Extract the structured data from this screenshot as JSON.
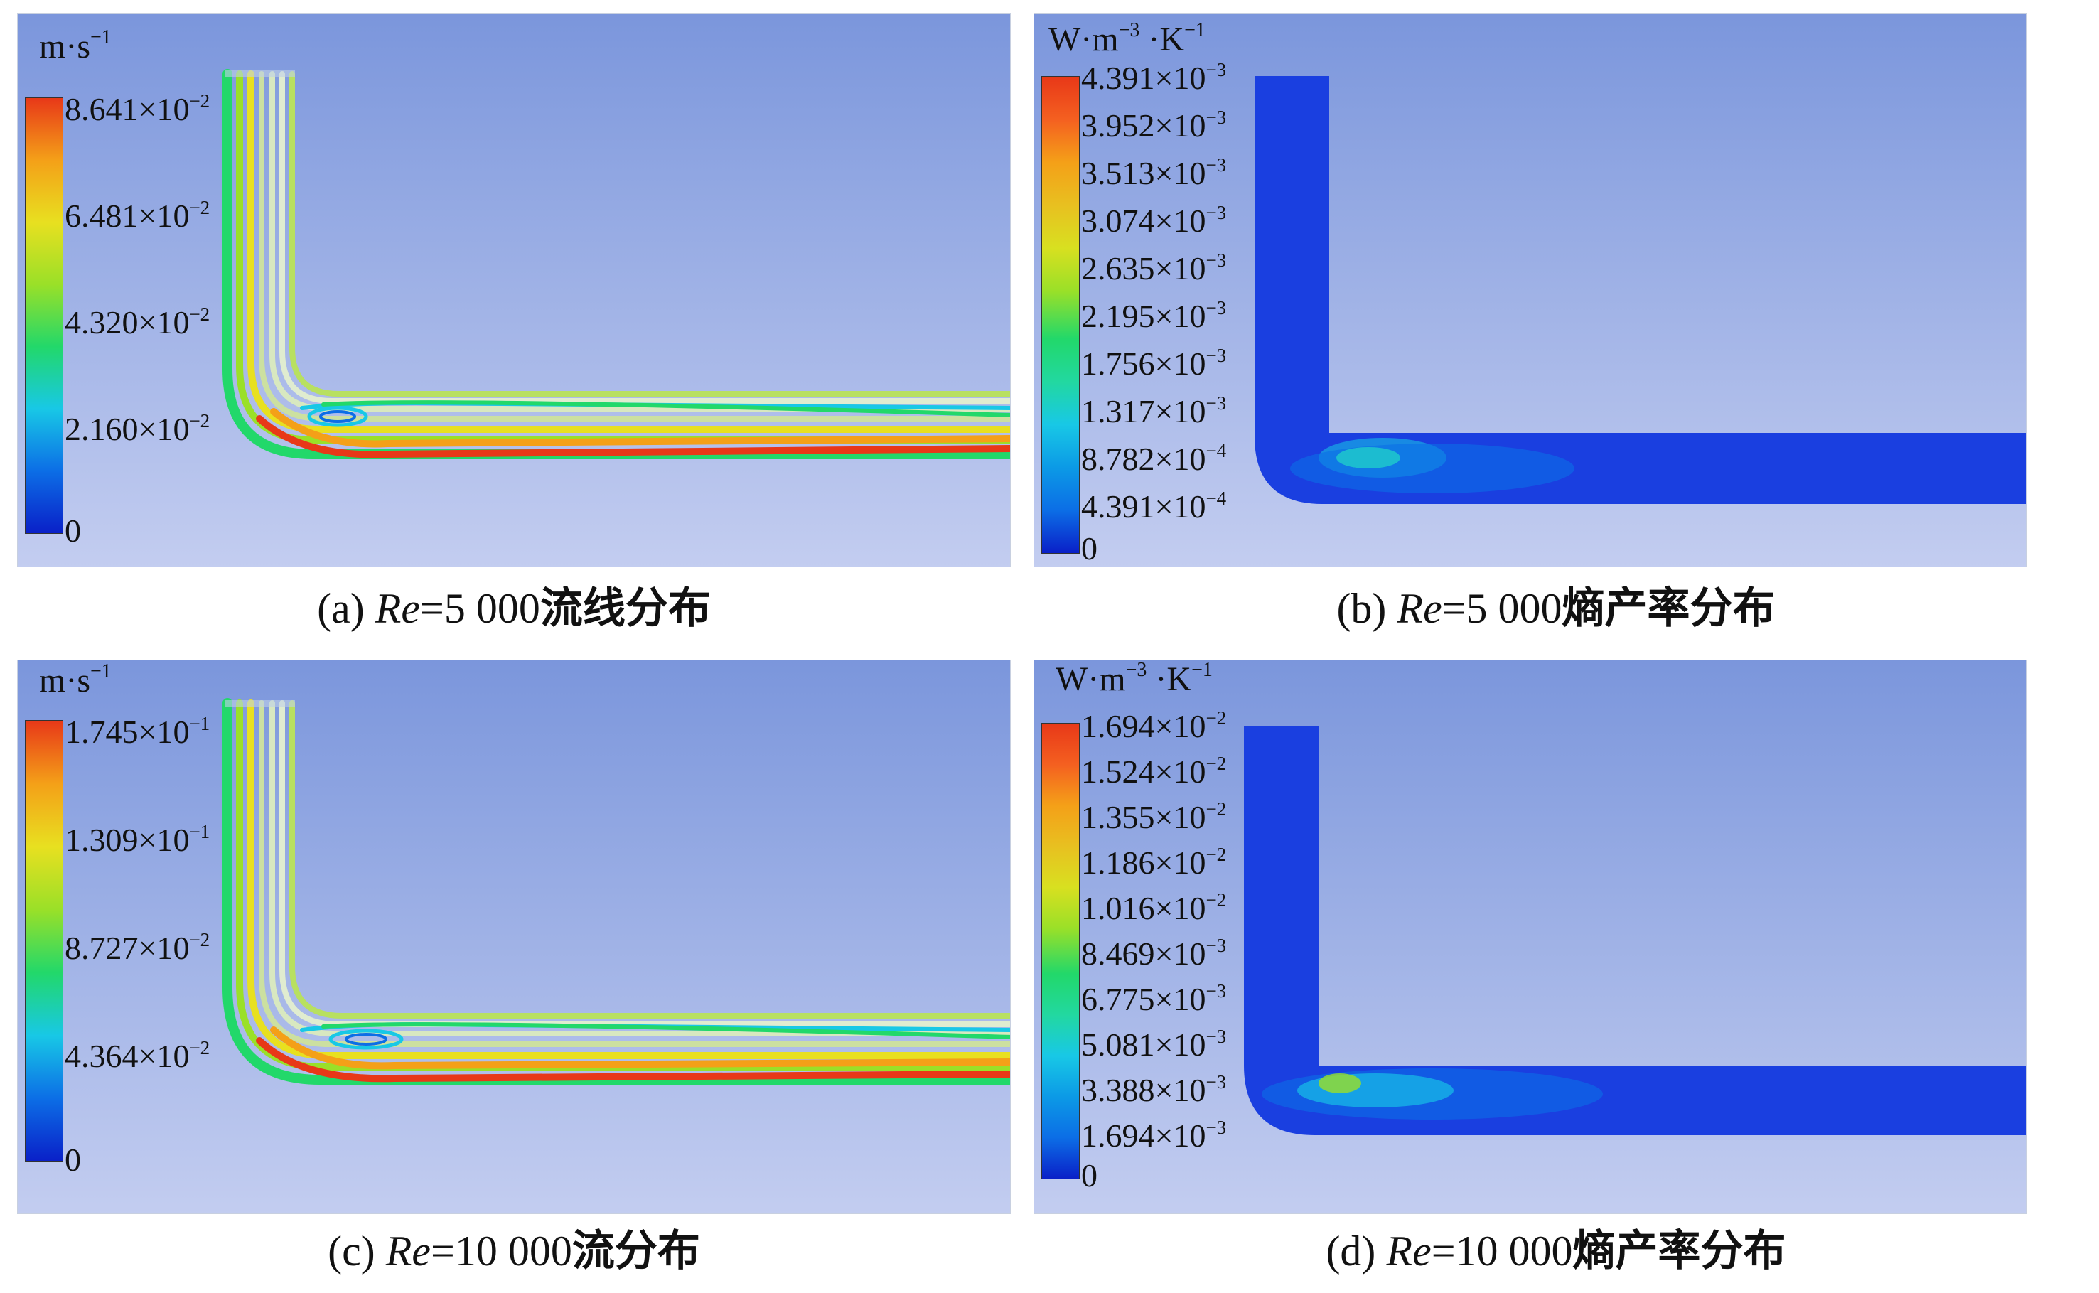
{
  "panels": [
    {
      "id": "a",
      "unit": {
        "base": "m·s",
        "exp": "−1"
      },
      "legend": [
        {
          "m": "8.641",
          "e": "−2"
        },
        {
          "m": "6.481",
          "e": "−2"
        },
        {
          "m": "4.320",
          "e": "−2"
        },
        {
          "m": "2.160",
          "e": "−2"
        },
        {
          "m": "0",
          "e": ""
        }
      ],
      "caption": {
        "prefix": "(a) ",
        "re": "Re",
        "value": "=5 000",
        "text": "流线分布"
      }
    },
    {
      "id": "b",
      "unit": {
        "base": "W·m",
        "exp": "−3",
        "base2": " ·K",
        "exp2": "−1"
      },
      "legend": [
        {
          "m": "4.391",
          "e": "−3"
        },
        {
          "m": "3.952",
          "e": "−3"
        },
        {
          "m": "3.513",
          "e": "−3"
        },
        {
          "m": "3.074",
          "e": "−3"
        },
        {
          "m": "2.635",
          "e": "−3"
        },
        {
          "m": "2.195",
          "e": "−3"
        },
        {
          "m": "1.756",
          "e": "−3"
        },
        {
          "m": "1.317",
          "e": "−3"
        },
        {
          "m": "8.782",
          "e": "−4"
        },
        {
          "m": "4.391",
          "e": "−4"
        },
        {
          "m": "0",
          "e": ""
        }
      ],
      "caption": {
        "prefix": "(b) ",
        "re": "Re",
        "value": "=5 000",
        "text": "熵产率分布"
      }
    },
    {
      "id": "c",
      "unit": {
        "base": "m·s",
        "exp": "−1"
      },
      "legend": [
        {
          "m": "1.745",
          "e": "−1"
        },
        {
          "m": "1.309",
          "e": "−1"
        },
        {
          "m": "8.727",
          "e": "−2"
        },
        {
          "m": "4.364",
          "e": "−2"
        },
        {
          "m": "0",
          "e": ""
        }
      ],
      "caption": {
        "prefix": "(c) ",
        "re": "Re",
        "value": "=10 000",
        "text": "流分布"
      }
    },
    {
      "id": "d",
      "unit": {
        "base": "W·m",
        "exp": "−3",
        "base2": " ·K",
        "exp2": "−1"
      },
      "legend": [
        {
          "m": "1.694",
          "e": "−2"
        },
        {
          "m": "1.524",
          "e": "−2"
        },
        {
          "m": "1.355",
          "e": "−2"
        },
        {
          "m": "1.186",
          "e": "−2"
        },
        {
          "m": "1.016",
          "e": "−2"
        },
        {
          "m": "8.469",
          "e": "−3"
        },
        {
          "m": "6.775",
          "e": "−3"
        },
        {
          "m": "5.081",
          "e": "−3"
        },
        {
          "m": "3.388",
          "e": "−3"
        },
        {
          "m": "1.694",
          "e": "−3"
        },
        {
          "m": "0",
          "e": ""
        }
      ],
      "caption": {
        "prefix": "(d) ",
        "re": "Re",
        "value": "=10 000",
        "text": "熵产率分布"
      }
    }
  ],
  "colors": {
    "bg_top": "#7b96dc",
    "bg_bottom": "#c3cdf0",
    "pipe_blue": "#1a3fe0",
    "rainbow": [
      "#0a20c8",
      "#0c6ee6",
      "#18c8e6",
      "#22d86a",
      "#9ae028",
      "#e8e020",
      "#f4a018",
      "#e83818"
    ]
  }
}
